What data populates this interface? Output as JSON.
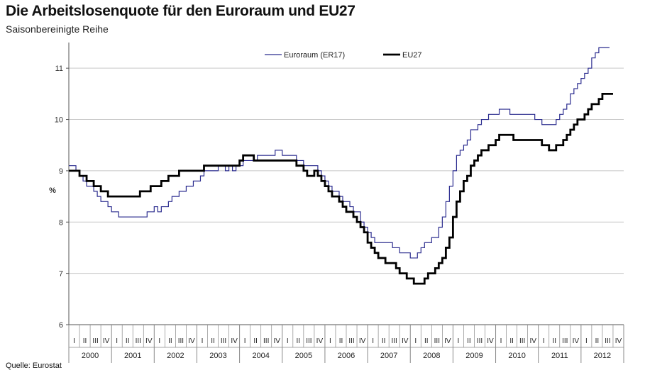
{
  "header": {
    "title": "Die Arbeitslosenquote für den Euroraum und EU27",
    "subtitle": "Saisonbereinigte Reihe"
  },
  "footer": {
    "source": "Quelle: Eurostat"
  },
  "colors": {
    "euro": "#2b2c8f",
    "eu27": "#000000",
    "grid": "#c8c8c8",
    "axis": "#555555"
  },
  "chart_data": {
    "type": "line",
    "title": "Die Arbeitslosenquote für den Euroraum und EU27",
    "ylabel": "%",
    "xlabel": "",
    "ylim": [
      6,
      11.5
    ],
    "yticks": [
      6,
      7,
      8,
      9,
      10,
      11
    ],
    "grid": true,
    "legend_position": "top-center",
    "years": [
      "2000",
      "2001",
      "2002",
      "2003",
      "2004",
      "2005",
      "2006",
      "2007",
      "2008",
      "2009",
      "2010",
      "2011",
      "2012"
    ],
    "quarters": [
      "I",
      "II",
      "III",
      "IV"
    ],
    "x_start": "2000-01",
    "frequency": "monthly",
    "series": [
      {
        "name": "Euroraum (ER17)",
        "values": [
          9.1,
          9.1,
          9.0,
          8.9,
          8.8,
          8.7,
          8.7,
          8.6,
          8.5,
          8.4,
          8.4,
          8.3,
          8.2,
          8.2,
          8.1,
          8.1,
          8.1,
          8.1,
          8.1,
          8.1,
          8.1,
          8.1,
          8.2,
          8.2,
          8.3,
          8.2,
          8.3,
          8.3,
          8.4,
          8.5,
          8.5,
          8.6,
          8.6,
          8.7,
          8.7,
          8.8,
          8.8,
          8.9,
          9.0,
          9.0,
          9.0,
          9.0,
          9.1,
          9.1,
          9.0,
          9.1,
          9.0,
          9.1,
          9.1,
          9.2,
          9.2,
          9.2,
          9.2,
          9.3,
          9.3,
          9.3,
          9.3,
          9.3,
          9.4,
          9.4,
          9.3,
          9.3,
          9.3,
          9.3,
          9.2,
          9.2,
          9.1,
          9.1,
          9.1,
          9.1,
          9.0,
          8.9,
          8.8,
          8.7,
          8.6,
          8.6,
          8.5,
          8.4,
          8.4,
          8.3,
          8.2,
          8.2,
          8.0,
          7.9,
          7.8,
          7.7,
          7.6,
          7.6,
          7.6,
          7.6,
          7.6,
          7.5,
          7.5,
          7.4,
          7.4,
          7.4,
          7.3,
          7.3,
          7.4,
          7.5,
          7.6,
          7.6,
          7.7,
          7.7,
          7.9,
          8.1,
          8.4,
          8.7,
          9.0,
          9.3,
          9.4,
          9.5,
          9.6,
          9.8,
          9.8,
          9.9,
          10.0,
          10.0,
          10.1,
          10.1,
          10.1,
          10.2,
          10.2,
          10.2,
          10.1,
          10.1,
          10.1,
          10.1,
          10.1,
          10.1,
          10.1,
          10.0,
          10.0,
          9.9,
          9.9,
          9.9,
          9.9,
          10.0,
          10.1,
          10.2,
          10.3,
          10.5,
          10.6,
          10.7,
          10.8,
          10.9,
          11.0,
          11.2,
          11.3,
          11.4,
          11.4,
          11.4
        ]
      },
      {
        "name": "EU27",
        "values": [
          9.0,
          9.0,
          9.0,
          8.9,
          8.9,
          8.8,
          8.8,
          8.7,
          8.7,
          8.6,
          8.6,
          8.5,
          8.5,
          8.5,
          8.5,
          8.5,
          8.5,
          8.5,
          8.5,
          8.5,
          8.6,
          8.6,
          8.6,
          8.7,
          8.7,
          8.7,
          8.8,
          8.8,
          8.9,
          8.9,
          8.9,
          9.0,
          9.0,
          9.0,
          9.0,
          9.0,
          9.0,
          9.0,
          9.1,
          9.1,
          9.1,
          9.1,
          9.1,
          9.1,
          9.1,
          9.1,
          9.1,
          9.1,
          9.2,
          9.3,
          9.3,
          9.3,
          9.2,
          9.2,
          9.2,
          9.2,
          9.2,
          9.2,
          9.2,
          9.2,
          9.2,
          9.2,
          9.2,
          9.2,
          9.1,
          9.1,
          9.0,
          8.9,
          8.9,
          9.0,
          8.9,
          8.8,
          8.7,
          8.6,
          8.5,
          8.5,
          8.4,
          8.3,
          8.2,
          8.2,
          8.1,
          8.0,
          7.9,
          7.8,
          7.6,
          7.5,
          7.4,
          7.3,
          7.3,
          7.2,
          7.2,
          7.2,
          7.1,
          7.0,
          7.0,
          6.9,
          6.9,
          6.8,
          6.8,
          6.8,
          6.9,
          7.0,
          7.0,
          7.1,
          7.2,
          7.3,
          7.5,
          7.7,
          8.1,
          8.4,
          8.6,
          8.8,
          8.9,
          9.1,
          9.2,
          9.3,
          9.4,
          9.4,
          9.5,
          9.5,
          9.6,
          9.7,
          9.7,
          9.7,
          9.7,
          9.6,
          9.6,
          9.6,
          9.6,
          9.6,
          9.6,
          9.6,
          9.6,
          9.5,
          9.5,
          9.4,
          9.4,
          9.5,
          9.5,
          9.6,
          9.7,
          9.8,
          9.9,
          10.0,
          10.0,
          10.1,
          10.2,
          10.3,
          10.3,
          10.4,
          10.5,
          10.5,
          10.5
        ]
      }
    ]
  }
}
